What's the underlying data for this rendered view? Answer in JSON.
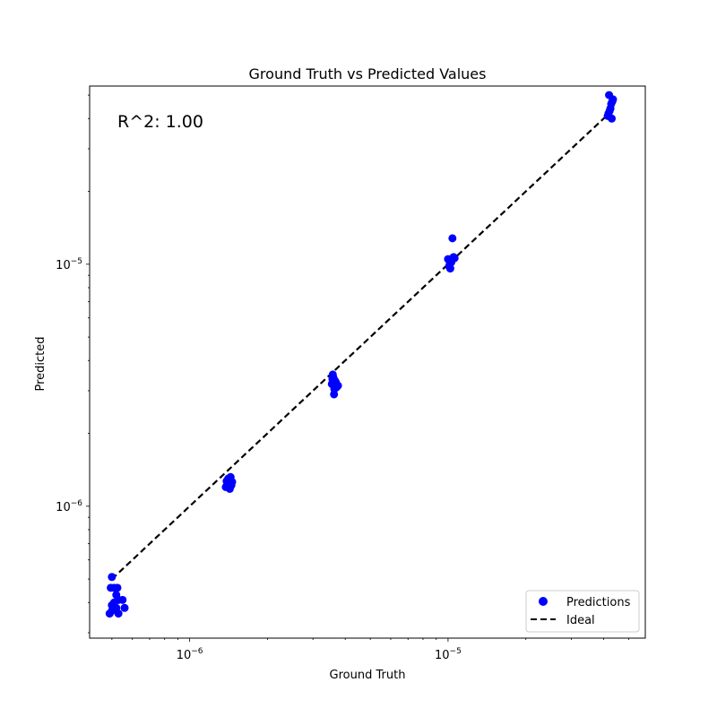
{
  "chart_data": {
    "type": "scatter",
    "title": "Ground Truth vs Predicted Values",
    "xlabel": "Ground Truth",
    "ylabel": "Predicted",
    "xscale": "log",
    "yscale": "log",
    "xlim": [
      4.1e-07,
      5.8e-05
    ],
    "ylim": [
      2.85e-07,
      5.45e-05
    ],
    "grid": false,
    "legend_position": "bottom-right",
    "annotation": "R^2: 1.00",
    "x_ticks": [
      {
        "value": 1e-06,
        "mantissa": "10",
        "exp": "−6"
      },
      {
        "value": 1e-05,
        "mantissa": "10",
        "exp": "−5"
      }
    ],
    "y_ticks": [
      {
        "value": 1e-06,
        "mantissa": "10",
        "exp": "−6"
      },
      {
        "value": 1e-05,
        "mantissa": "10",
        "exp": "−5"
      }
    ],
    "series": [
      {
        "name": "Predictions",
        "color": "#0000ff",
        "marker": "circle",
        "x": [
          5e-07,
          5.1e-07,
          5.2e-07,
          5.3e-07,
          5e-07,
          5.2e-07,
          5.5e-07,
          4.9e-07,
          5.3e-07,
          5.6e-07,
          5.1e-07,
          4.95e-07,
          5e-07,
          5.25e-07,
          1.38e-06,
          1.4e-06,
          1.42e-06,
          1.44e-06,
          1.46e-06,
          1.41e-06,
          1.45e-06,
          1.39e-06,
          1.43e-06,
          3.55e-06,
          3.6e-06,
          3.65e-06,
          3.7e-06,
          3.58e-06,
          3.75e-06,
          3.62e-06,
          3.68e-06,
          3.57e-06,
          3.63e-06,
          1e-05,
          1.01e-05,
          1.02e-05,
          1.03e-05,
          1.04e-05,
          1.05e-05,
          1.06e-05,
          1.015e-05,
          1.025e-05,
          1.035e-05,
          4.15e-05,
          4.2e-05,
          4.25e-05,
          4.3e-05,
          4.35e-05,
          4.22e-05,
          4.28e-05,
          4.32e-05,
          4.18e-05
        ],
        "y": [
          5.1e-07,
          4.6e-07,
          4.3e-07,
          4.1e-07,
          3.7e-07,
          3.8e-07,
          4.1e-07,
          3.6e-07,
          3.6e-07,
          3.8e-07,
          4e-07,
          4.6e-07,
          3.9e-07,
          4.6e-07,
          1.2e-06,
          1.24e-06,
          1.28e-06,
          1.32e-06,
          1.26e-06,
          1.3e-06,
          1.22e-06,
          1.27e-06,
          1.18e-06,
          3.2e-06,
          3.4e-06,
          3.3e-06,
          3.1e-06,
          3.5e-06,
          3.15e-06,
          2.9e-06,
          3.25e-06,
          3.35e-06,
          3.05e-06,
          1.05e-05,
          9.8e-06,
          9.6e-06,
          1.02e-05,
          1.28e-05,
          1.07e-05,
          1.06e-05,
          1e-05,
          1.04e-05,
          1.05e-05,
          4.1e-05,
          5e-05,
          4.4e-05,
          4e-05,
          4.8e-05,
          4.3e-05,
          4.6e-05,
          4.7e-05,
          4.2e-05
        ]
      },
      {
        "name": "Ideal",
        "color": "#000000",
        "style": "dashed",
        "x": [
          5e-07,
          4.4e-05
        ],
        "y": [
          5e-07,
          4.4e-05
        ]
      }
    ]
  }
}
